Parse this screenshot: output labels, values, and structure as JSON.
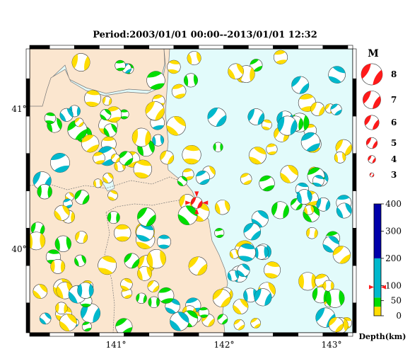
{
  "title": "Period:2003/01/01 00:00--2013/01/01 12:32",
  "colors": {
    "land": "#fbe6cf",
    "sea": "#e2fbfb",
    "mechanism_red": "#ff1a1a",
    "depth_0_30": "#ffdd00",
    "depth_30_60": "#00dd00",
    "depth_60_200": "#00b8cc",
    "depth_200_400": "#0000aa"
  },
  "map": {
    "lon_min": 140.05,
    "lon_max": 143.3,
    "lat_min": 39.55,
    "lat_max": 41.45,
    "lon_ticks": [
      {
        "value": 141,
        "label": "141°"
      },
      {
        "value": 142,
        "label": "142°"
      },
      {
        "value": 143,
        "label": "143°"
      }
    ],
    "lat_ticks": [
      {
        "value": 41,
        "label": "41°"
      },
      {
        "value": 40,
        "label": "40°"
      }
    ]
  },
  "magnitude_legend": {
    "heading": "M",
    "items": [
      {
        "label": "8",
        "mag": 8
      },
      {
        "label": "7",
        "mag": 7
      },
      {
        "label": "6",
        "mag": 6
      },
      {
        "label": "5",
        "mag": 5
      },
      {
        "label": "4",
        "mag": 4
      },
      {
        "label": "3",
        "mag": 3
      }
    ]
  },
  "depth_scale": {
    "label": "Depth(km)",
    "ticks": [
      {
        "value": 400,
        "label": "400"
      },
      {
        "value": 300,
        "label": "300"
      },
      {
        "value": 200,
        "label": "200"
      },
      {
        "value": 100,
        "label": "100"
      },
      {
        "value": 50,
        "label": "50"
      },
      {
        "value": 0,
        "label": "0"
      }
    ],
    "marker_depth": 95
  },
  "highlight_event": {
    "lon": 141.73,
    "lat": 40.42,
    "mag": 5.2,
    "depth": 95
  }
}
